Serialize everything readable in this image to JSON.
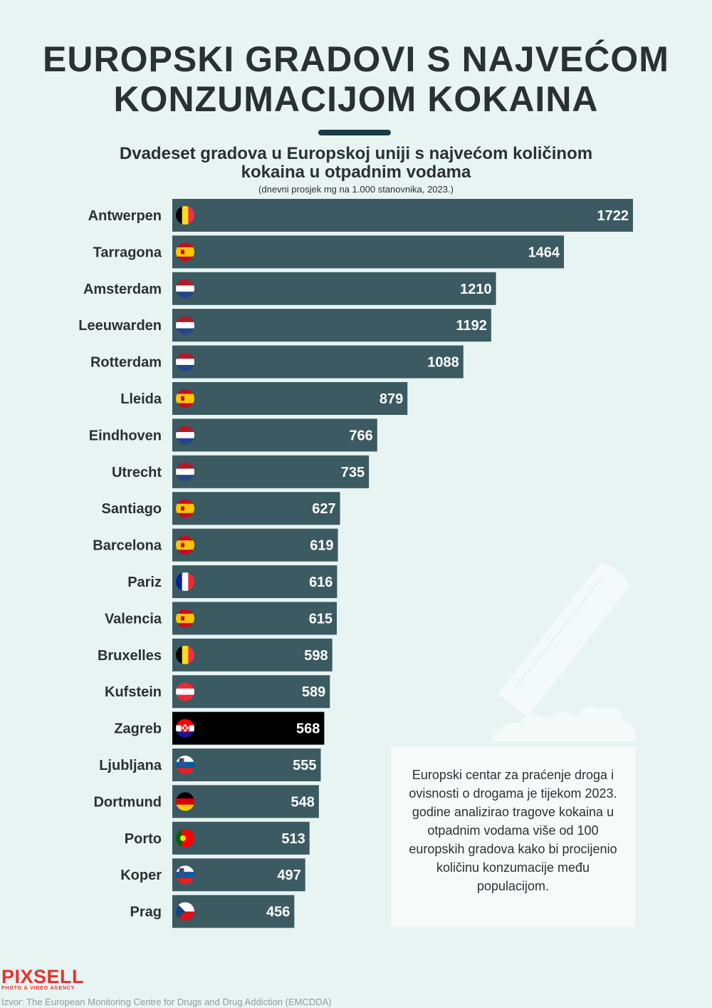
{
  "title_line1": "EUROPSKI GRADOVI S NAJVEĆOM",
  "title_line2": "KONZUMACIJOM KOKAINA",
  "subtitle_line1": "Dvadeset gradova u Europskoj uniji s najvećom količinom",
  "subtitle_line2": "kokaina u otpadnim vodama",
  "note": "(dnevni prosjek mg na 1.000 stanovnika, 2023.)",
  "info_text": "Europski centar za praćenje droga i ovisnosti o drogama je tijekom 2023. godine analizirao tragove kokaina u otpadnim vodama više od 100 europskih gradova kako bi procijenio količinu konzumacije među populacijom.",
  "logo_text": "PIXSELL",
  "logo_subtext": "PHOTO & VIDEO AGENCY",
  "source": "Izvor: The European Monitoring Centre for Drugs and Drug Addiction (EMCDDA)",
  "colors": {
    "bar": "#3c5a62",
    "highlight_bar": "#000000",
    "background": "#e8f4f1"
  },
  "chart_data": {
    "type": "bar",
    "orientation": "horizontal",
    "categories": [
      "Antwerpen",
      "Tarragona",
      "Amsterdam",
      "Leeuwarden",
      "Rotterdam",
      "Lleida",
      "Eindhoven",
      "Utrecht",
      "Santiago",
      "Barcelona",
      "Pariz",
      "Valencia",
      "Bruxelles",
      "Kufstein",
      "Zagreb",
      "Ljubljana",
      "Dortmund",
      "Porto",
      "Koper",
      "Prag"
    ],
    "values": [
      1722,
      1464,
      1210,
      1192,
      1088,
      879,
      766,
      735,
      627,
      619,
      616,
      615,
      598,
      589,
      568,
      555,
      548,
      513,
      497,
      456
    ],
    "flags": [
      "belgium",
      "spain",
      "netherlands",
      "netherlands",
      "netherlands",
      "spain",
      "netherlands",
      "netherlands",
      "spain",
      "spain",
      "france",
      "spain",
      "belgium",
      "austria",
      "croatia",
      "slovenia",
      "germany",
      "portugal",
      "slovenia",
      "czechia"
    ],
    "highlight": "Zagreb",
    "xlim": [
      0,
      1722
    ]
  }
}
